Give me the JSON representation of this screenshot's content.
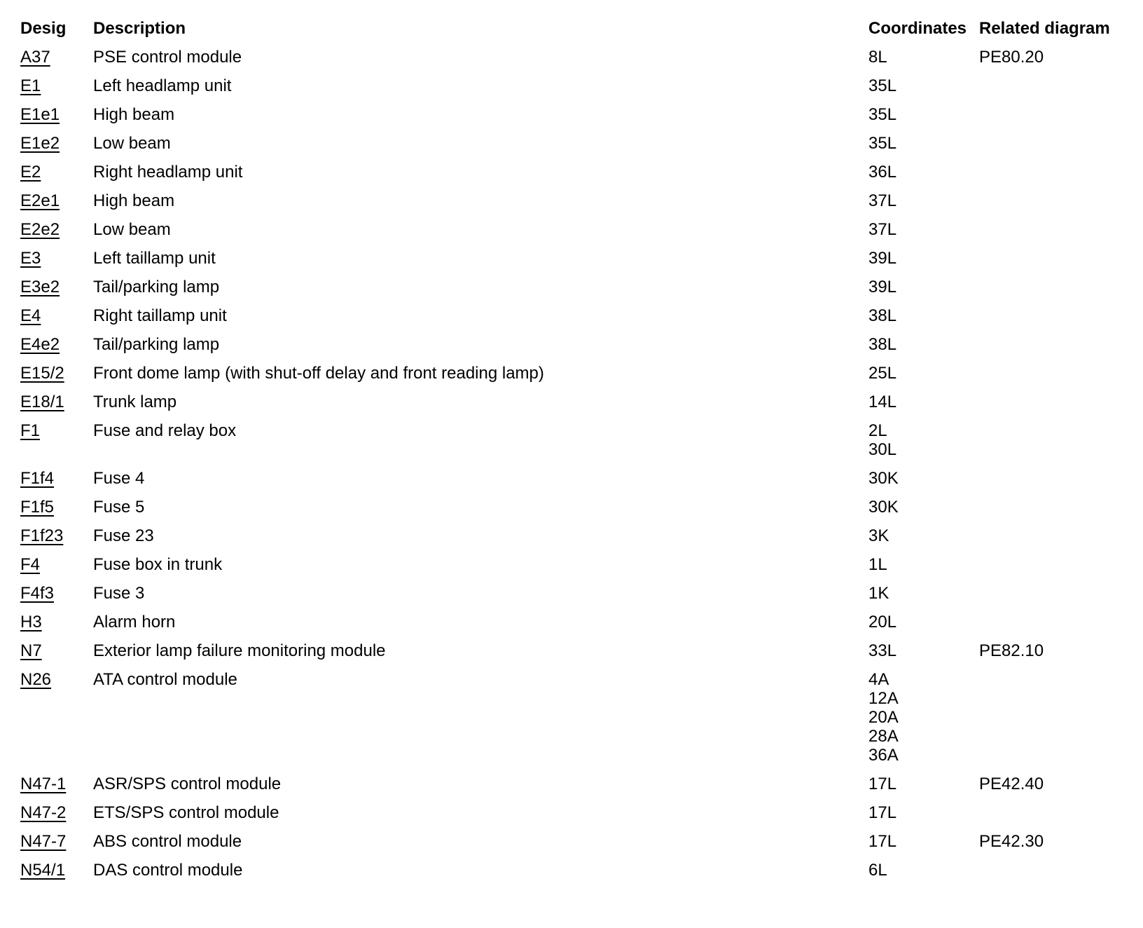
{
  "table": {
    "headers": {
      "desig": "Desig",
      "description": "Description",
      "coordinates": "Coordinates",
      "related": "Related diagram"
    },
    "rows": [
      {
        "desig": "A37",
        "description": "PSE control module",
        "coordinates": [
          "8L"
        ],
        "related": "PE80.20"
      },
      {
        "desig": "E1",
        "description": "Left headlamp unit",
        "coordinates": [
          "35L"
        ],
        "related": ""
      },
      {
        "desig": "E1e1",
        "description": "High beam",
        "coordinates": [
          "35L"
        ],
        "related": ""
      },
      {
        "desig": "E1e2",
        "description": "Low beam",
        "coordinates": [
          "35L"
        ],
        "related": ""
      },
      {
        "desig": "E2",
        "description": "Right headlamp unit",
        "coordinates": [
          "36L"
        ],
        "related": ""
      },
      {
        "desig": "E2e1",
        "description": "High beam",
        "coordinates": [
          "37L"
        ],
        "related": ""
      },
      {
        "desig": "E2e2",
        "description": "Low beam",
        "coordinates": [
          "37L"
        ],
        "related": ""
      },
      {
        "desig": "E3",
        "description": "Left taillamp unit",
        "coordinates": [
          "39L"
        ],
        "related": ""
      },
      {
        "desig": "E3e2",
        "description": "Tail/parking lamp",
        "coordinates": [
          "39L"
        ],
        "related": ""
      },
      {
        "desig": "E4",
        "description": "Right taillamp unit",
        "coordinates": [
          "38L"
        ],
        "related": ""
      },
      {
        "desig": "E4e2",
        "description": "Tail/parking lamp",
        "coordinates": [
          "38L"
        ],
        "related": ""
      },
      {
        "desig": "E15/2",
        "description": "Front dome lamp (with shut-off delay and front reading lamp)",
        "coordinates": [
          "25L"
        ],
        "related": ""
      },
      {
        "desig": "E18/1",
        "description": "Trunk lamp",
        "coordinates": [
          "14L"
        ],
        "related": ""
      },
      {
        "desig": "F1",
        "description": "Fuse and relay box",
        "coordinates": [
          "2L",
          "30L"
        ],
        "related": ""
      },
      {
        "desig": "F1f4",
        "description": "Fuse 4",
        "coordinates": [
          "30K"
        ],
        "related": ""
      },
      {
        "desig": "F1f5",
        "description": "Fuse 5",
        "coordinates": [
          "30K"
        ],
        "related": ""
      },
      {
        "desig": "F1f23",
        "description": "Fuse 23",
        "coordinates": [
          "3K"
        ],
        "related": ""
      },
      {
        "desig": "F4",
        "description": "Fuse box in trunk",
        "coordinates": [
          "1L"
        ],
        "related": ""
      },
      {
        "desig": "F4f3",
        "description": "Fuse 3",
        "coordinates": [
          "1K"
        ],
        "related": ""
      },
      {
        "desig": "H3",
        "description": "Alarm horn",
        "coordinates": [
          "20L"
        ],
        "related": ""
      },
      {
        "desig": "N7",
        "description": "Exterior lamp failure monitoring module",
        "coordinates": [
          "33L"
        ],
        "related": "PE82.10"
      },
      {
        "desig": "N26",
        "description": "ATA control module",
        "coordinates": [
          "4A",
          "12A",
          "20A",
          "28A",
          "36A"
        ],
        "related": ""
      },
      {
        "desig": "N47-1",
        "description": "ASR/SPS control module",
        "coordinates": [
          "17L"
        ],
        "related": "PE42.40"
      },
      {
        "desig": "N47-2",
        "description": "ETS/SPS control module",
        "coordinates": [
          "17L"
        ],
        "related": ""
      },
      {
        "desig": "N47-7",
        "description": "ABS control module",
        "coordinates": [
          "17L"
        ],
        "related": "PE42.30"
      },
      {
        "desig": "N54/1",
        "description": "DAS control module",
        "coordinates": [
          "6L"
        ],
        "related": ""
      }
    ]
  }
}
